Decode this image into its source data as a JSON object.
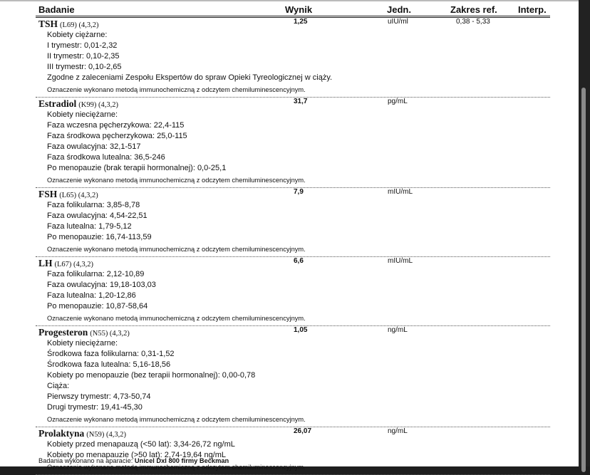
{
  "header": {
    "test": "Badanie",
    "result": "Wynik",
    "unit": "Jedn.",
    "range": "Zakres ref.",
    "interp": "Interp."
  },
  "tests": [
    {
      "name": "TSH",
      "code": "(L69) (4,3,2)",
      "result": "1,25",
      "unit": "uIU/ml",
      "range": "0,38 - 5,33",
      "notes": [
        "Kobiety ciężarne:",
        "I  trymestr: 0,01-2,32",
        "II  trymestr: 0,10-2,35",
        "III trymestr: 0,10-2,65",
        "Zgodne z zaleceniami Zespołu Ekspertów do spraw Opieki Tyreologicznej w ciąży."
      ],
      "method": "Oznaczenie wykonano metodą immunochemiczną z odczytem chemiluminescencyjnym."
    },
    {
      "name": "Estradiol",
      "code": "(K99) (4,3,2)",
      "result": "31,7",
      "unit": "pg/mL",
      "range": "",
      "notes": [
        "Kobiety nieciężarne:",
        "Faza wczesna pęcherzykowa: 22,4-115",
        "Faza środkowa pęcherzykowa: 25,0-115",
        "Faza owulacyjna: 32,1-517",
        "Faza środkowa lutealna: 36,5-246",
        "Po menopauzie (brak terapii hormonalnej): 0,0-25,1"
      ],
      "method": "Oznaczenie wykonano metodą immunochemiczną z odczytem chemiluminescencyjnym."
    },
    {
      "name": "FSH",
      "code": "(L65) (4,3,2)",
      "result": "7,9",
      "unit": "mIU/mL",
      "range": "",
      "notes": [
        "Faza folikularna: 3,85-8,78",
        "Faza owulacyjna: 4,54-22,51",
        "Faza lutealna: 1,79-5,12",
        "Po menopauzie: 16,74-113,59"
      ],
      "method": "Oznaczenie wykonano metodą immunochemiczną z odczytem chemiluminescencyjnym."
    },
    {
      "name": "LH",
      "code": "(L67) (4,3,2)",
      "result": "6,6",
      "unit": "mIU/mL",
      "range": "",
      "notes": [
        "Faza folikularna: 2,12-10,89",
        "Faza owulacyjna: 19,18-103,03",
        "Faza lutealna: 1,20-12,86",
        "Po menopauzie: 10,87-58,64"
      ],
      "method": "Oznaczenie wykonano metodą immunochemiczną z odczytem chemiluminescencyjnym."
    },
    {
      "name": "Progesteron",
      "code": "(N55) (4,3,2)",
      "result": "1,05",
      "unit": "ng/mL",
      "range": "",
      "notes": [
        "Kobiety nieciężarne:",
        "Środkowa faza folikularna: 0,31-1,52",
        "Środkowa faza lutealna: 5,16-18,56",
        "Kobiety po menopauzie (bez terapii hormonalnej): 0,00-0,78",
        "Ciąża:",
        "Pierwszy trymestr: 4,73-50,74",
        "Drugi trymestr: 19,41-45,30"
      ],
      "method": "Oznaczenie wykonano metodą immunochemiczną z odczytem chemiluminescencyjnym."
    },
    {
      "name": "Prolaktyna",
      "code": "(N59) (4,3,2)",
      "result": "26,07",
      "unit": "ng/mL",
      "range": "",
      "notes": [
        "Kobiety przed menapauzą (<50 lat): 3,34-26,72 ng/mL",
        "Kobiety po menapauzie (>50 lat): 2,74-19,64 ng/mL"
      ],
      "method": "Oznaczenie wykonano metodą immunochemiczną z odczytem chemiluminescencyjnym."
    }
  ],
  "footer": {
    "label": "Badania wykonano na aparacie:",
    "device": "Unicel DxI 800 firmy Beckman"
  }
}
